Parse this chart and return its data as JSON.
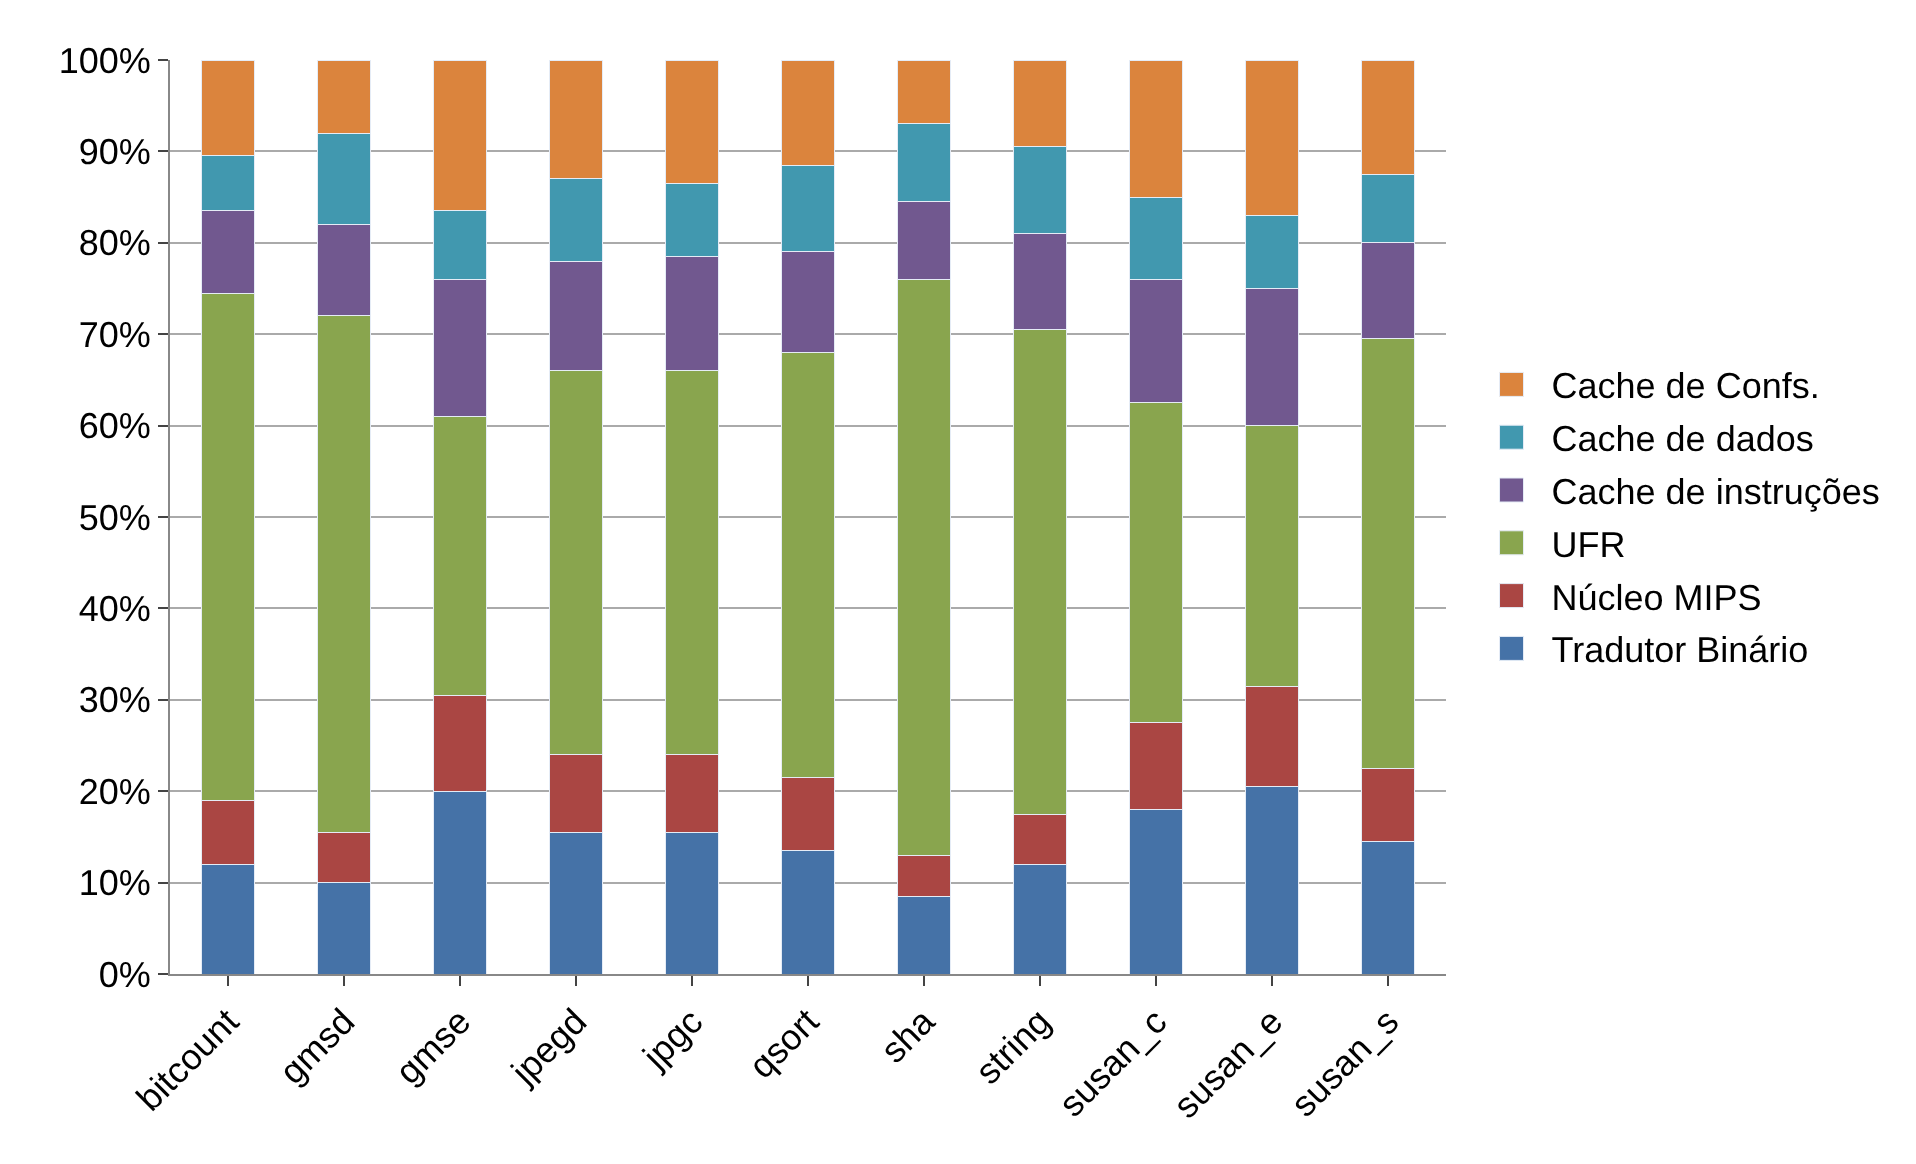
{
  "chart_data": {
    "type": "bar",
    "stacked": true,
    "categories": [
      "bitcount",
      "gmsd",
      "gmse",
      "jpegd",
      "jpgc",
      "qsort",
      "sha",
      "string",
      "susan_c",
      "susan_e",
      "susan_s"
    ],
    "series": [
      {
        "name": "Tradutor Binário",
        "color": "#4572a7",
        "values": [
          12,
          10,
          20,
          15.5,
          15.5,
          13.5,
          8.5,
          12,
          18,
          20.5,
          14.5
        ]
      },
      {
        "name": "Núcleo MIPS",
        "color": "#aa4643",
        "values": [
          7,
          5.5,
          10.5,
          8.5,
          8.5,
          8,
          4.5,
          5.5,
          9.5,
          11,
          8
        ]
      },
      {
        "name": "UFR",
        "color": "#89a54e",
        "values": [
          55.5,
          56.5,
          30.5,
          42,
          42,
          46.5,
          63,
          53,
          35,
          28.5,
          47
        ]
      },
      {
        "name": "Cache de instruções",
        "color": "#71588f",
        "values": [
          9,
          10,
          15,
          12,
          12.5,
          11,
          8.5,
          10.5,
          13.5,
          15,
          10.5
        ]
      },
      {
        "name": "Cache de dados",
        "color": "#4198af",
        "values": [
          6,
          10,
          7.5,
          9,
          8,
          9.5,
          8.5,
          9.5,
          9,
          8,
          7.5
        ]
      },
      {
        "name": "Cache de Confs.",
        "color": "#db843d",
        "values": [
          10.5,
          8,
          16.5,
          13,
          13.5,
          11.5,
          7,
          9.5,
          15,
          17,
          12.5
        ]
      }
    ],
    "ylim": [
      0,
      100
    ],
    "yticks": [
      {
        "value": 0,
        "label": "0%"
      },
      {
        "value": 10,
        "label": "10%"
      },
      {
        "value": 20,
        "label": "20%"
      },
      {
        "value": 30,
        "label": "30%"
      },
      {
        "value": 40,
        "label": "40%"
      },
      {
        "value": 50,
        "label": "50%"
      },
      {
        "value": 60,
        "label": "60%"
      },
      {
        "value": 70,
        "label": "70%"
      },
      {
        "value": 80,
        "label": "80%"
      },
      {
        "value": 90,
        "label": "90%"
      },
      {
        "value": 100,
        "label": "100%"
      }
    ],
    "grid": "y",
    "legend": "right"
  }
}
